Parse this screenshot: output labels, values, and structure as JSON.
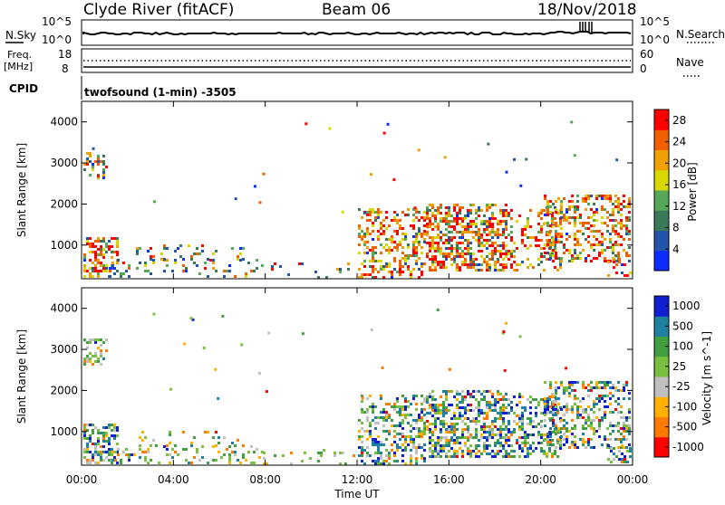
{
  "header": {
    "station": "Clyde River (fitACF)",
    "beam": "Beam 06",
    "date": "18/Nov/2018"
  },
  "top_panels": {
    "nsky_label": "N.Sky",
    "nsky_top": "10^5",
    "nsky_bottom": "10^0",
    "nsearch_label": "N.Search",
    "nsearch_top": "10^5",
    "nsearch_bottom": "10^0",
    "freq_label_1": "Freq.",
    "freq_label_2": "[MHz]",
    "freq_top": "18",
    "freq_bottom": "8",
    "nave_label": "Nave",
    "nave_top": "60",
    "nave_bottom": "0",
    "cpid_label": "CPID",
    "cpid_value": "twofsound (1-min) -3505"
  },
  "colors": {
    "power": [
      "#0a2cff",
      "#2255a8",
      "#3a7a5a",
      "#55a855",
      "#d8d800",
      "#f0a000",
      "#f06000",
      "#ff0000"
    ],
    "velocity": [
      "#ff0000",
      "#ff7a00",
      "#ffb000",
      "#c0c0c0",
      "#7ac040",
      "#40a040",
      "#2080a0",
      "#1020d0"
    ]
  },
  "chart_data": [
    {
      "type": "heatmap",
      "title": "",
      "xlabel": "",
      "ylabel": "Slant Range [km]",
      "xlim": [
        "00:00",
        "24:00"
      ],
      "ylim": [
        180,
        4500
      ],
      "x_ticks": [
        "00:00",
        "04:00",
        "08:00",
        "12:00",
        "16:00",
        "20:00",
        "00:00"
      ],
      "y_ticks": [
        1000,
        2000,
        3000,
        4000
      ],
      "colorbar": {
        "label": "Power [dB]",
        "ticks": [
          4,
          8,
          12,
          16,
          20,
          24,
          28
        ],
        "range": [
          0,
          30
        ]
      }
    },
    {
      "type": "heatmap",
      "title": "",
      "xlabel": "Time UT",
      "ylabel": "Slant Range [km]",
      "xlim": [
        "00:00",
        "24:00"
      ],
      "ylim": [
        180,
        4500
      ],
      "x_ticks": [
        "00:00",
        "04:00",
        "08:00",
        "12:00",
        "16:00",
        "20:00",
        "00:00"
      ],
      "y_ticks": [
        1000,
        2000,
        3000,
        4000
      ],
      "colorbar": {
        "label": "Velocity [m s^-1]",
        "ticks": [
          -1000,
          -500,
          -100,
          -25,
          25,
          100,
          500,
          1000
        ]
      }
    }
  ]
}
